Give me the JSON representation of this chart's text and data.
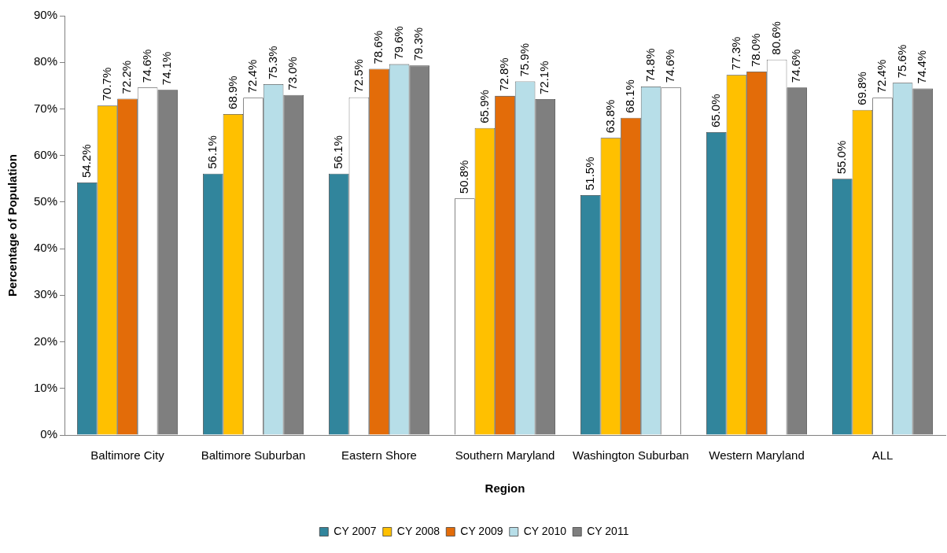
{
  "chart_data": {
    "type": "bar",
    "xlabel": "Region",
    "ylabel": "Percentage of Population",
    "categories": [
      "Baltimore City",
      "Baltimore Suburban",
      "Eastern Shore",
      "Southern Maryland",
      "Washington Suburban",
      "Western Maryland",
      "ALL"
    ],
    "series": [
      {
        "name": "CY 2007",
        "color": "#31859c",
        "colors": [
          "#31859c",
          "#31859c",
          "#31859c",
          "#ffffff",
          "#31859c",
          "#31859c",
          "#31859c"
        ],
        "values": [
          54.2,
          56.1,
          56.1,
          50.8,
          51.5,
          65.0,
          55.0
        ],
        "value_labels": [
          "54.2%",
          "56.1%",
          "56.1%",
          "50.8%",
          "51.5%",
          "65.0%",
          "55.0%"
        ]
      },
      {
        "name": "CY 2008",
        "color": "#ffc000",
        "colors": [
          "#ffc000",
          "#ffc000",
          "#ffffff",
          "#ffc000",
          "#ffc000",
          "#ffc000",
          "#ffc000"
        ],
        "values": [
          70.7,
          68.9,
          72.5,
          65.9,
          63.8,
          77.3,
          69.8
        ],
        "value_labels": [
          "70.7%",
          "68.9%",
          "72.5%",
          "65.9%",
          "63.8%",
          "77.3%",
          "69.8%"
        ]
      },
      {
        "name": "CY 2009",
        "color": "#e36c09",
        "colors": [
          "#e36c09",
          "#ffffff",
          "#e36c09",
          "#e36c09",
          "#e36c09",
          "#e36c09",
          "#ffffff"
        ],
        "values": [
          72.2,
          72.4,
          78.6,
          72.8,
          68.1,
          78.0,
          72.4
        ],
        "value_labels": [
          "72.2%",
          "72.4%",
          "78.6%",
          "72.8%",
          "68.1%",
          "78.0%",
          "72.4%"
        ]
      },
      {
        "name": "CY 2010",
        "color": "#b7dee8",
        "colors": [
          "#ffffff",
          "#b7dee8",
          "#b7dee8",
          "#b7dee8",
          "#b7dee8",
          "#ffffff",
          "#b7dee8"
        ],
        "values": [
          74.6,
          75.3,
          79.6,
          75.9,
          74.8,
          80.6,
          75.6
        ],
        "value_labels": [
          "74.6%",
          "75.3%",
          "79.6%",
          "75.9%",
          "74.8%",
          "80.6%",
          "75.6%"
        ]
      },
      {
        "name": "CY 2011",
        "color": "#7f7f7f",
        "colors": [
          "#7f7f7f",
          "#7f7f7f",
          "#7f7f7f",
          "#7f7f7f",
          "#ffffff",
          "#7f7f7f",
          "#7f7f7f"
        ],
        "values": [
          74.1,
          73.0,
          79.3,
          72.1,
          74.6,
          74.6,
          74.4
        ],
        "value_labels": [
          "74.1%",
          "73.0%",
          "79.3%",
          "72.1%",
          "74.6%",
          "74.6%",
          "74.4%"
        ]
      }
    ],
    "ylim": [
      0,
      90
    ],
    "yticks": [
      {
        "value": 0,
        "label": "0%"
      },
      {
        "value": 10,
        "label": "10%"
      },
      {
        "value": 20,
        "label": "20%"
      },
      {
        "value": 30,
        "label": "30%"
      },
      {
        "value": 40,
        "label": "40%"
      },
      {
        "value": 50,
        "label": "50%"
      },
      {
        "value": 60,
        "label": "60%"
      },
      {
        "value": 70,
        "label": "70%"
      },
      {
        "value": 80,
        "label": "80%"
      },
      {
        "value": 90,
        "label": "90%"
      }
    ],
    "grid": false,
    "legend": "bottom"
  }
}
